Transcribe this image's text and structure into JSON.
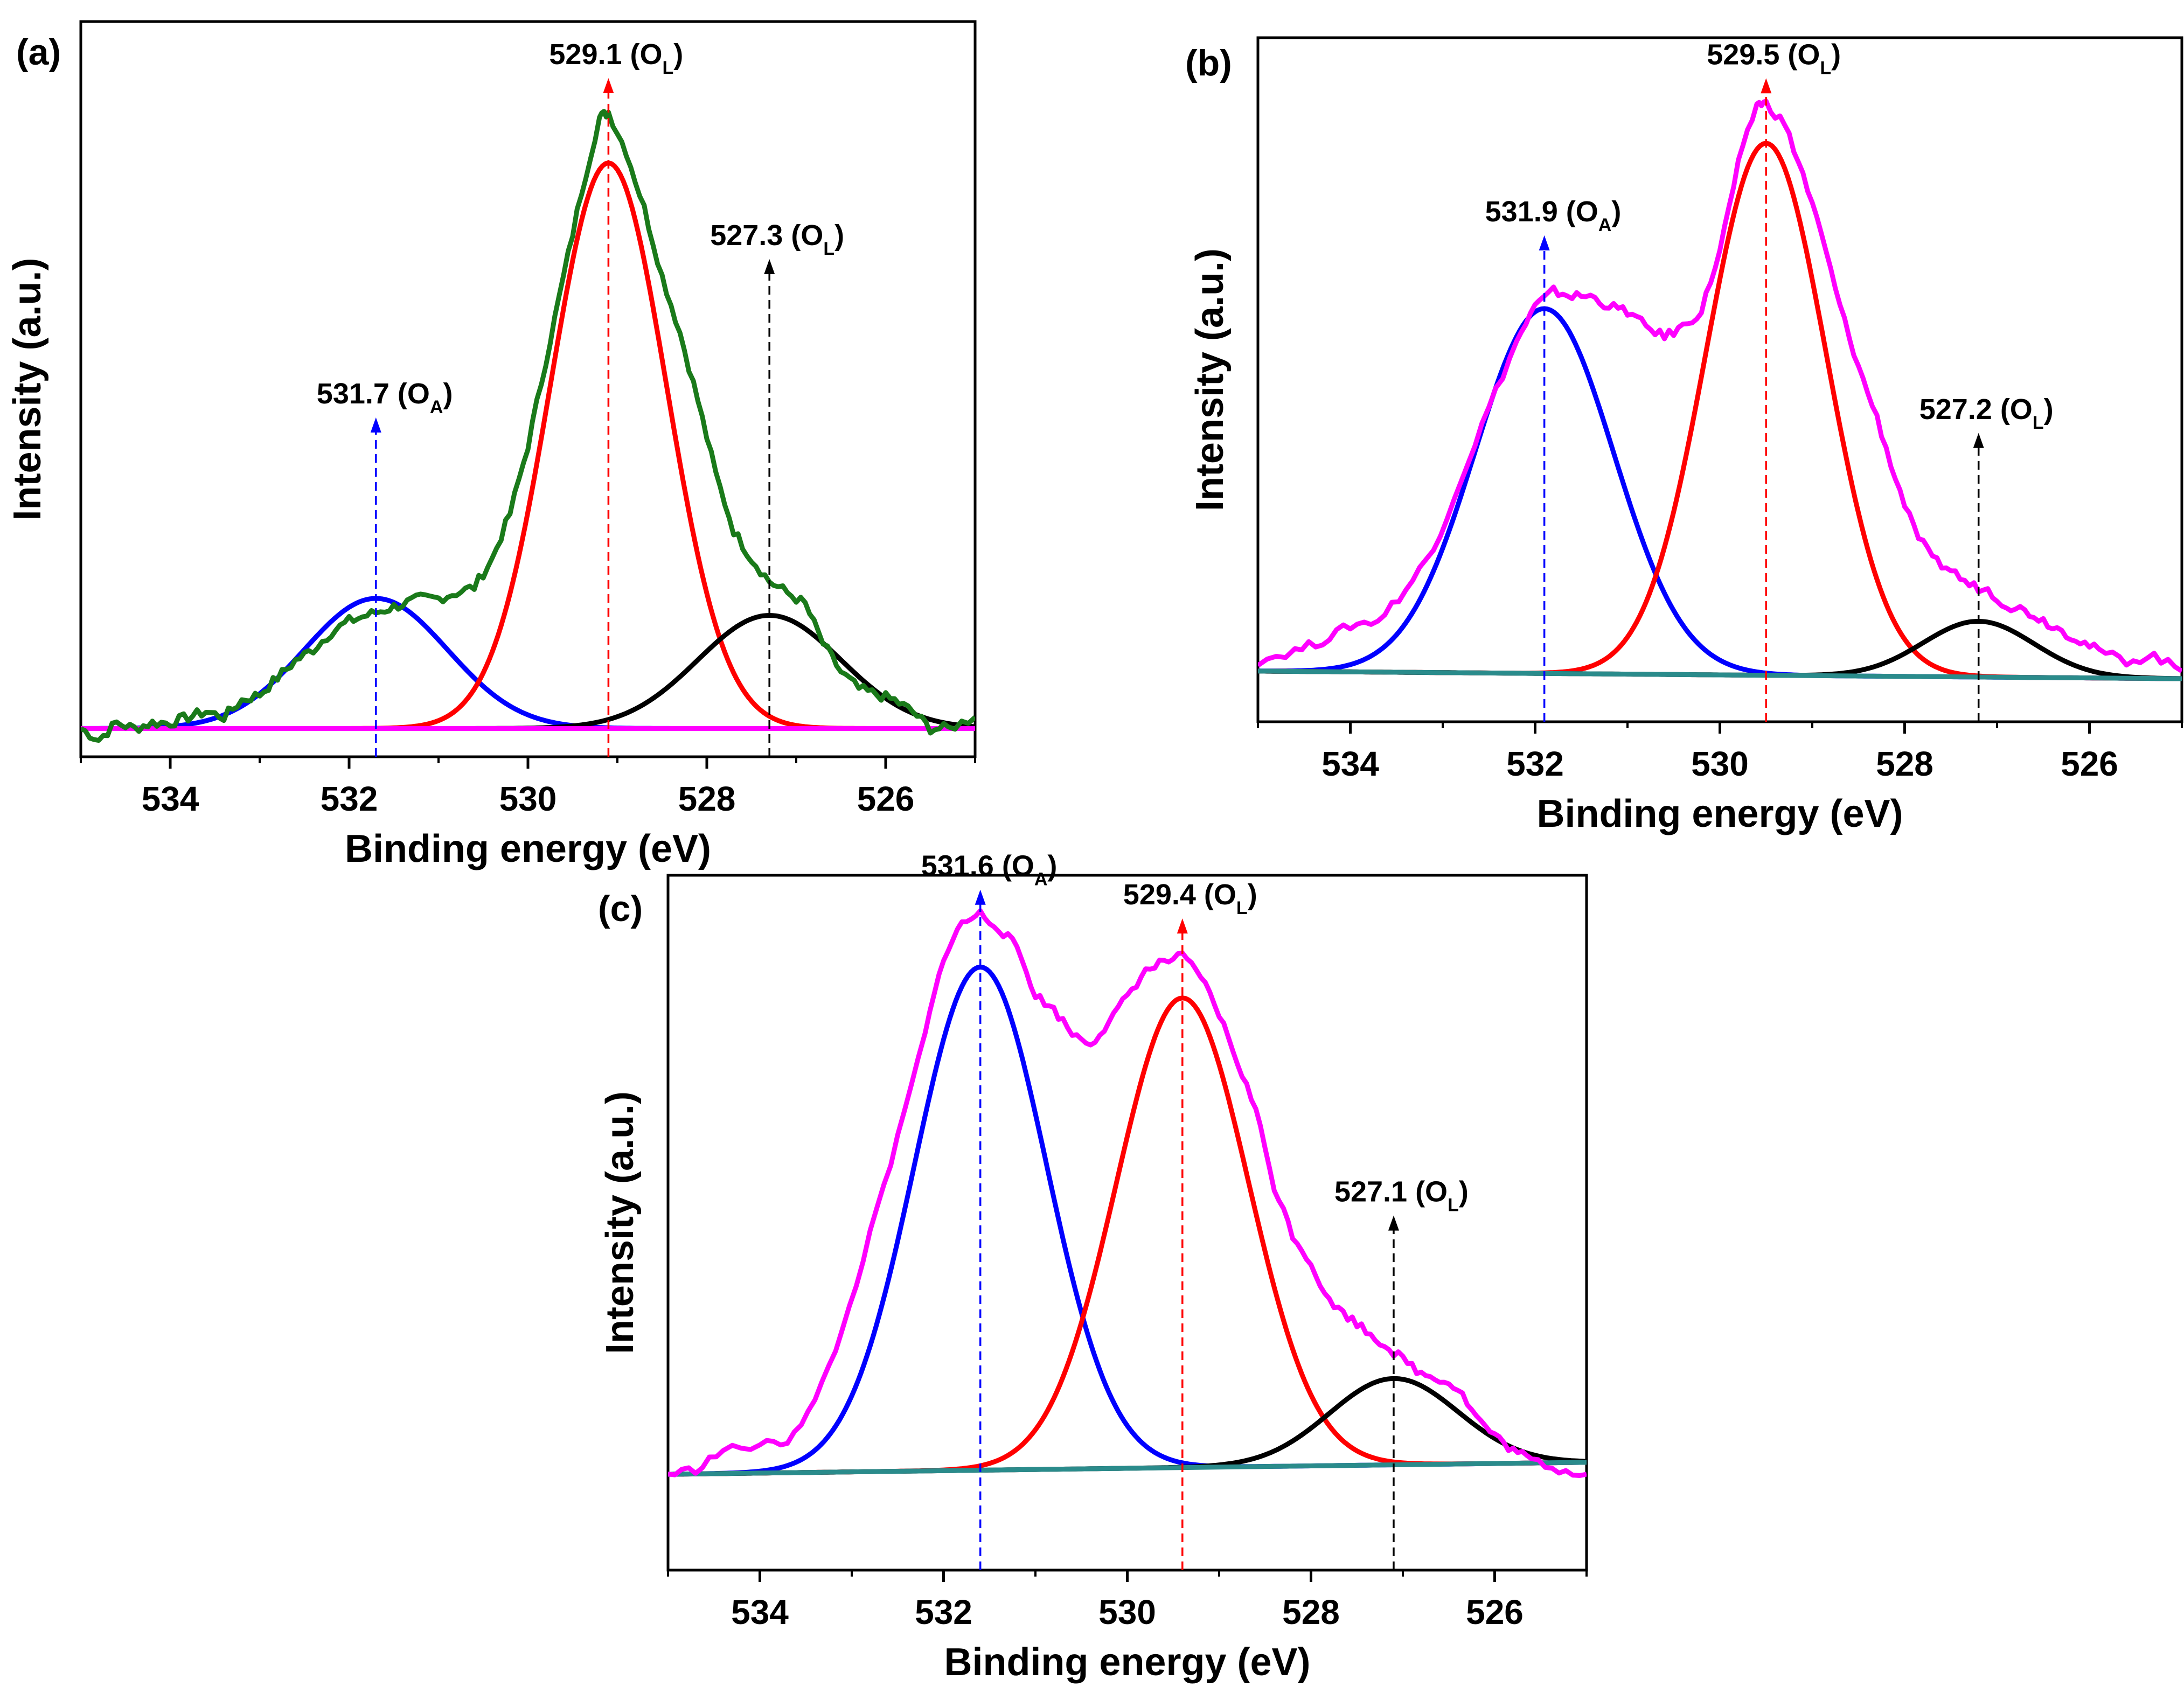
{
  "chart_data": [
    {
      "type": "line",
      "panel_label": "(a)",
      "xlabel": "Binding energy (eV)",
      "ylabel": "Intensity (a.u.)",
      "xlim": [
        535,
        525
      ],
      "ylim": [
        -0.05,
        1.25
      ],
      "xticks": [
        534,
        532,
        530,
        528,
        526
      ],
      "measured_color": "#1a7a1a",
      "measured_points": [
        [
          535.0,
          0.0
        ],
        [
          534.8,
          -0.02
        ],
        [
          534.6,
          0.01
        ],
        [
          534.4,
          0.0
        ],
        [
          534.2,
          0.01
        ],
        [
          534.0,
          0.01
        ],
        [
          533.8,
          0.02
        ],
        [
          533.6,
          0.03
        ],
        [
          533.4,
          0.02
        ],
        [
          533.2,
          0.05
        ],
        [
          533.0,
          0.06
        ],
        [
          532.8,
          0.09
        ],
        [
          532.6,
          0.12
        ],
        [
          532.4,
          0.14
        ],
        [
          532.2,
          0.17
        ],
        [
          532.0,
          0.19
        ],
        [
          531.8,
          0.2
        ],
        [
          531.6,
          0.21
        ],
        [
          531.4,
          0.22
        ],
        [
          531.2,
          0.23
        ],
        [
          531.0,
          0.23
        ],
        [
          530.8,
          0.24
        ],
        [
          530.6,
          0.25
        ],
        [
          530.4,
          0.3
        ],
        [
          530.2,
          0.38
        ],
        [
          530.0,
          0.5
        ],
        [
          529.8,
          0.65
        ],
        [
          529.6,
          0.8
        ],
        [
          529.4,
          0.95
        ],
        [
          529.2,
          1.08
        ],
        [
          529.1,
          1.09
        ],
        [
          528.9,
          1.02
        ],
        [
          528.7,
          0.92
        ],
        [
          528.5,
          0.8
        ],
        [
          528.3,
          0.7
        ],
        [
          528.1,
          0.58
        ],
        [
          527.9,
          0.45
        ],
        [
          527.7,
          0.35
        ],
        [
          527.5,
          0.3
        ],
        [
          527.3,
          0.26
        ],
        [
          527.1,
          0.24
        ],
        [
          526.9,
          0.22
        ],
        [
          526.7,
          0.15
        ],
        [
          526.5,
          0.1
        ],
        [
          526.3,
          0.07
        ],
        [
          526.1,
          0.06
        ],
        [
          525.9,
          0.05
        ],
        [
          525.7,
          0.03
        ],
        [
          525.5,
          0.0
        ],
        [
          525.3,
          0.0
        ],
        [
          525.0,
          0.02
        ]
      ],
      "baseline_color": "#ff00ff",
      "baseline": [
        0.0,
        0.0
      ],
      "peaks": [
        {
          "center": 531.7,
          "amplitude": 0.23,
          "sigma": 0.8,
          "color": "#0000ff",
          "label": "531.7",
          "species": "O",
          "sub": "A"
        },
        {
          "center": 529.1,
          "amplitude": 1.0,
          "sigma": 0.65,
          "color": "#ff0000",
          "label": "529.1",
          "species": "O",
          "sub": "L"
        },
        {
          "center": 527.3,
          "amplitude": 0.2,
          "sigma": 0.8,
          "color": "#000000",
          "label": "527.3",
          "species": "O",
          "sub": "L"
        }
      ],
      "arrow_tops": [
        0.55,
        1.15,
        0.83
      ]
    },
    {
      "type": "line",
      "panel_label": "(b)",
      "xlabel": "Binding energy (eV)",
      "ylabel": "Intensity (a.u.)",
      "xlim": [
        535,
        525
      ],
      "ylim": [
        -0.1,
        1.25
      ],
      "xticks": [
        534,
        532,
        530,
        528,
        526
      ],
      "measured_color": "#ff00ff",
      "measured_points": [
        [
          535.0,
          0.02
        ],
        [
          534.6,
          0.04
        ],
        [
          534.3,
          0.06
        ],
        [
          534.0,
          0.09
        ],
        [
          533.7,
          0.1
        ],
        [
          533.4,
          0.16
        ],
        [
          533.1,
          0.24
        ],
        [
          532.8,
          0.38
        ],
        [
          532.5,
          0.52
        ],
        [
          532.2,
          0.65
        ],
        [
          532.0,
          0.72
        ],
        [
          531.8,
          0.75
        ],
        [
          531.6,
          0.74
        ],
        [
          531.4,
          0.74
        ],
        [
          531.2,
          0.72
        ],
        [
          531.0,
          0.71
        ],
        [
          530.8,
          0.68
        ],
        [
          530.6,
          0.66
        ],
        [
          530.4,
          0.68
        ],
        [
          530.2,
          0.71
        ],
        [
          530.0,
          0.83
        ],
        [
          529.8,
          1.0
        ],
        [
          529.6,
          1.12
        ],
        [
          529.5,
          1.12
        ],
        [
          529.3,
          1.08
        ],
        [
          529.1,
          0.98
        ],
        [
          528.9,
          0.86
        ],
        [
          528.7,
          0.72
        ],
        [
          528.5,
          0.6
        ],
        [
          528.3,
          0.5
        ],
        [
          528.1,
          0.38
        ],
        [
          527.9,
          0.28
        ],
        [
          527.7,
          0.22
        ],
        [
          527.5,
          0.2
        ],
        [
          527.3,
          0.17
        ],
        [
          527.1,
          0.16
        ],
        [
          526.9,
          0.13
        ],
        [
          526.7,
          0.12
        ],
        [
          526.5,
          0.1
        ],
        [
          526.3,
          0.08
        ],
        [
          526.1,
          0.06
        ],
        [
          525.9,
          0.04
        ],
        [
          525.6,
          0.02
        ],
        [
          525.3,
          0.03
        ],
        [
          525.0,
          0.0
        ]
      ],
      "baseline_color": "#2a8b8b",
      "baseline": [
        0.0,
        -0.015
      ],
      "peaks": [
        {
          "center": 531.9,
          "amplitude": 0.72,
          "sigma": 0.75,
          "color": "#0000ff",
          "label": "531.9",
          "species": "O",
          "sub": "A"
        },
        {
          "center": 529.5,
          "amplitude": 1.05,
          "sigma": 0.65,
          "color": "#ff0000",
          "label": "529.5",
          "species": "O",
          "sub": "L"
        },
        {
          "center": 527.2,
          "amplitude": 0.11,
          "sigma": 0.6,
          "color": "#000000",
          "label": "527.2",
          "species": "O",
          "sub": "L"
        }
      ],
      "arrow_tops": [
        0.86,
        1.17,
        0.47
      ]
    },
    {
      "type": "line",
      "panel_label": "(c)",
      "xlabel": "Binding energy (eV)",
      "ylabel": "Intensity (a.u.)",
      "xlim": [
        535,
        525
      ],
      "ylim": [
        -0.2,
        1.25
      ],
      "xticks": [
        534,
        532,
        530,
        528,
        526
      ],
      "measured_color": "#ff00ff",
      "measured_points": [
        [
          535.0,
          0.0
        ],
        [
          534.7,
          0.01
        ],
        [
          534.4,
          0.05
        ],
        [
          534.0,
          0.06
        ],
        [
          533.7,
          0.07
        ],
        [
          533.4,
          0.15
        ],
        [
          533.1,
          0.3
        ],
        [
          532.8,
          0.5
        ],
        [
          532.5,
          0.7
        ],
        [
          532.2,
          0.92
        ],
        [
          532.0,
          1.08
        ],
        [
          531.8,
          1.15
        ],
        [
          531.6,
          1.17
        ],
        [
          531.4,
          1.14
        ],
        [
          531.2,
          1.1
        ],
        [
          531.0,
          1.0
        ],
        [
          530.8,
          0.97
        ],
        [
          530.6,
          0.92
        ],
        [
          530.4,
          0.9
        ],
        [
          530.2,
          0.94
        ],
        [
          530.0,
          1.0
        ],
        [
          529.8,
          1.05
        ],
        [
          529.6,
          1.07
        ],
        [
          529.4,
          1.08
        ],
        [
          529.2,
          1.04
        ],
        [
          529.0,
          0.96
        ],
        [
          528.8,
          0.86
        ],
        [
          528.6,
          0.76
        ],
        [
          528.4,
          0.6
        ],
        [
          528.2,
          0.5
        ],
        [
          528.0,
          0.44
        ],
        [
          527.8,
          0.36
        ],
        [
          527.6,
          0.33
        ],
        [
          527.4,
          0.3
        ],
        [
          527.2,
          0.27
        ],
        [
          527.0,
          0.24
        ],
        [
          526.8,
          0.21
        ],
        [
          526.6,
          0.2
        ],
        [
          526.4,
          0.18
        ],
        [
          526.2,
          0.12
        ],
        [
          526.0,
          0.08
        ],
        [
          525.8,
          0.05
        ],
        [
          525.6,
          0.03
        ],
        [
          525.3,
          0.01
        ],
        [
          525.0,
          0.0
        ]
      ],
      "baseline_color": "#2a8b8b",
      "baseline": [
        0.0,
        0.025
      ],
      "peaks": [
        {
          "center": 531.6,
          "amplitude": 1.05,
          "sigma": 0.72,
          "color": "#0000ff",
          "label": "531.6",
          "species": "O",
          "sub": "A"
        },
        {
          "center": 529.4,
          "amplitude": 0.98,
          "sigma": 0.72,
          "color": "#ff0000",
          "label": "529.4",
          "species": "O",
          "sub": "L"
        },
        {
          "center": 527.1,
          "amplitude": 0.18,
          "sigma": 0.7,
          "color": "#000000",
          "label": "527.1",
          "species": "O",
          "sub": "L"
        }
      ],
      "arrow_tops": [
        1.22,
        1.16,
        0.54
      ]
    }
  ]
}
